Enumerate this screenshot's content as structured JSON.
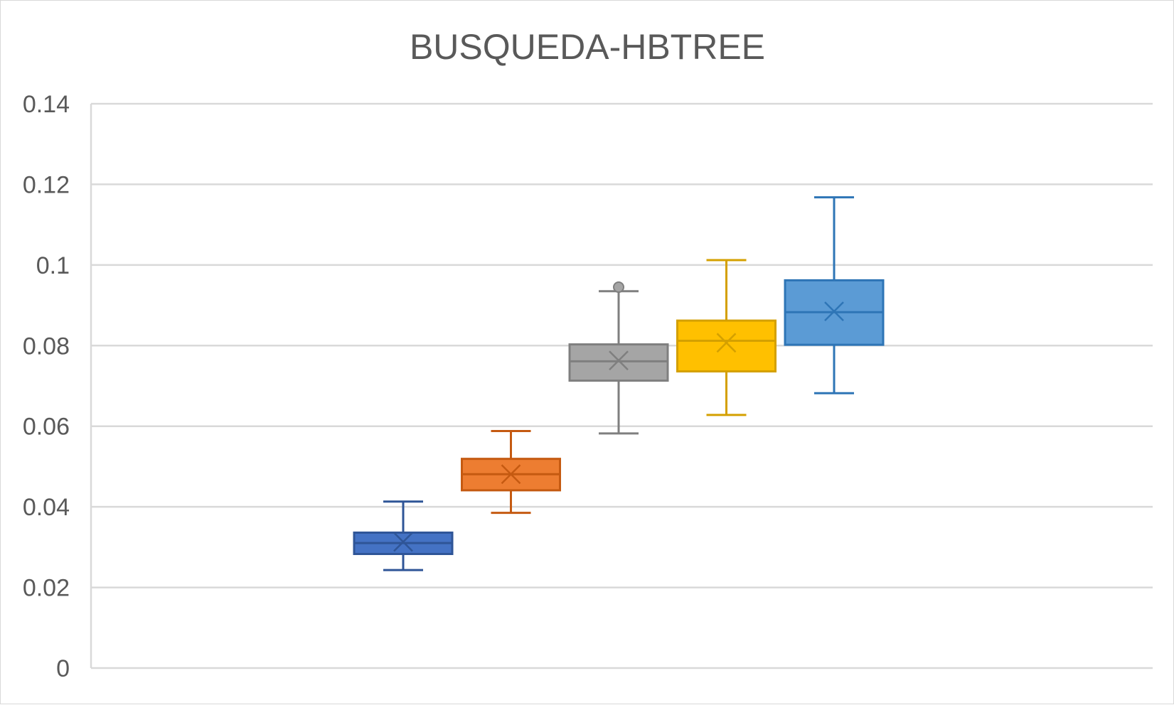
{
  "chart_data": {
    "type": "boxplot",
    "title": "BUSQUEDA-HBTREE",
    "xlabel": "",
    "ylabel": "",
    "ylim": [
      0,
      0.14
    ],
    "yticks": [
      0,
      0.02,
      0.04,
      0.06,
      0.08,
      0.1,
      0.12,
      0.14
    ],
    "ytick_labels": [
      "0",
      "0.02",
      "0.04",
      "0.06",
      "0.08",
      "0.1",
      "0.12",
      "0.14"
    ],
    "grid": true,
    "legend": "none",
    "series": [
      {
        "color": "#4472C4",
        "edge_color": "#2F5597",
        "min": 0.0243,
        "q1": 0.0283,
        "median": 0.031,
        "q3": 0.0336,
        "max": 0.0413,
        "mean": 0.0313,
        "outliers": []
      },
      {
        "color": "#ED7D31",
        "edge_color": "#C55A11",
        "min": 0.0385,
        "q1": 0.0441,
        "median": 0.0481,
        "q3": 0.0519,
        "max": 0.0588,
        "mean": 0.0481,
        "outliers": []
      },
      {
        "color": "#A5A5A5",
        "edge_color": "#7F7F7F",
        "min": 0.0582,
        "q1": 0.0713,
        "median": 0.0761,
        "q3": 0.0803,
        "max": 0.0935,
        "mean": 0.0763,
        "outliers": [
          0.0945
        ]
      },
      {
        "color": "#FFC000",
        "edge_color": "#D4A000",
        "min": 0.0628,
        "q1": 0.0736,
        "median": 0.0812,
        "q3": 0.0862,
        "max": 0.1012,
        "mean": 0.0807,
        "outliers": []
      },
      {
        "color": "#5B9BD5",
        "edge_color": "#2E75B6",
        "min": 0.0682,
        "q1": 0.0802,
        "median": 0.0883,
        "q3": 0.0962,
        "max": 0.1168,
        "mean": 0.0885,
        "outliers": []
      }
    ]
  }
}
